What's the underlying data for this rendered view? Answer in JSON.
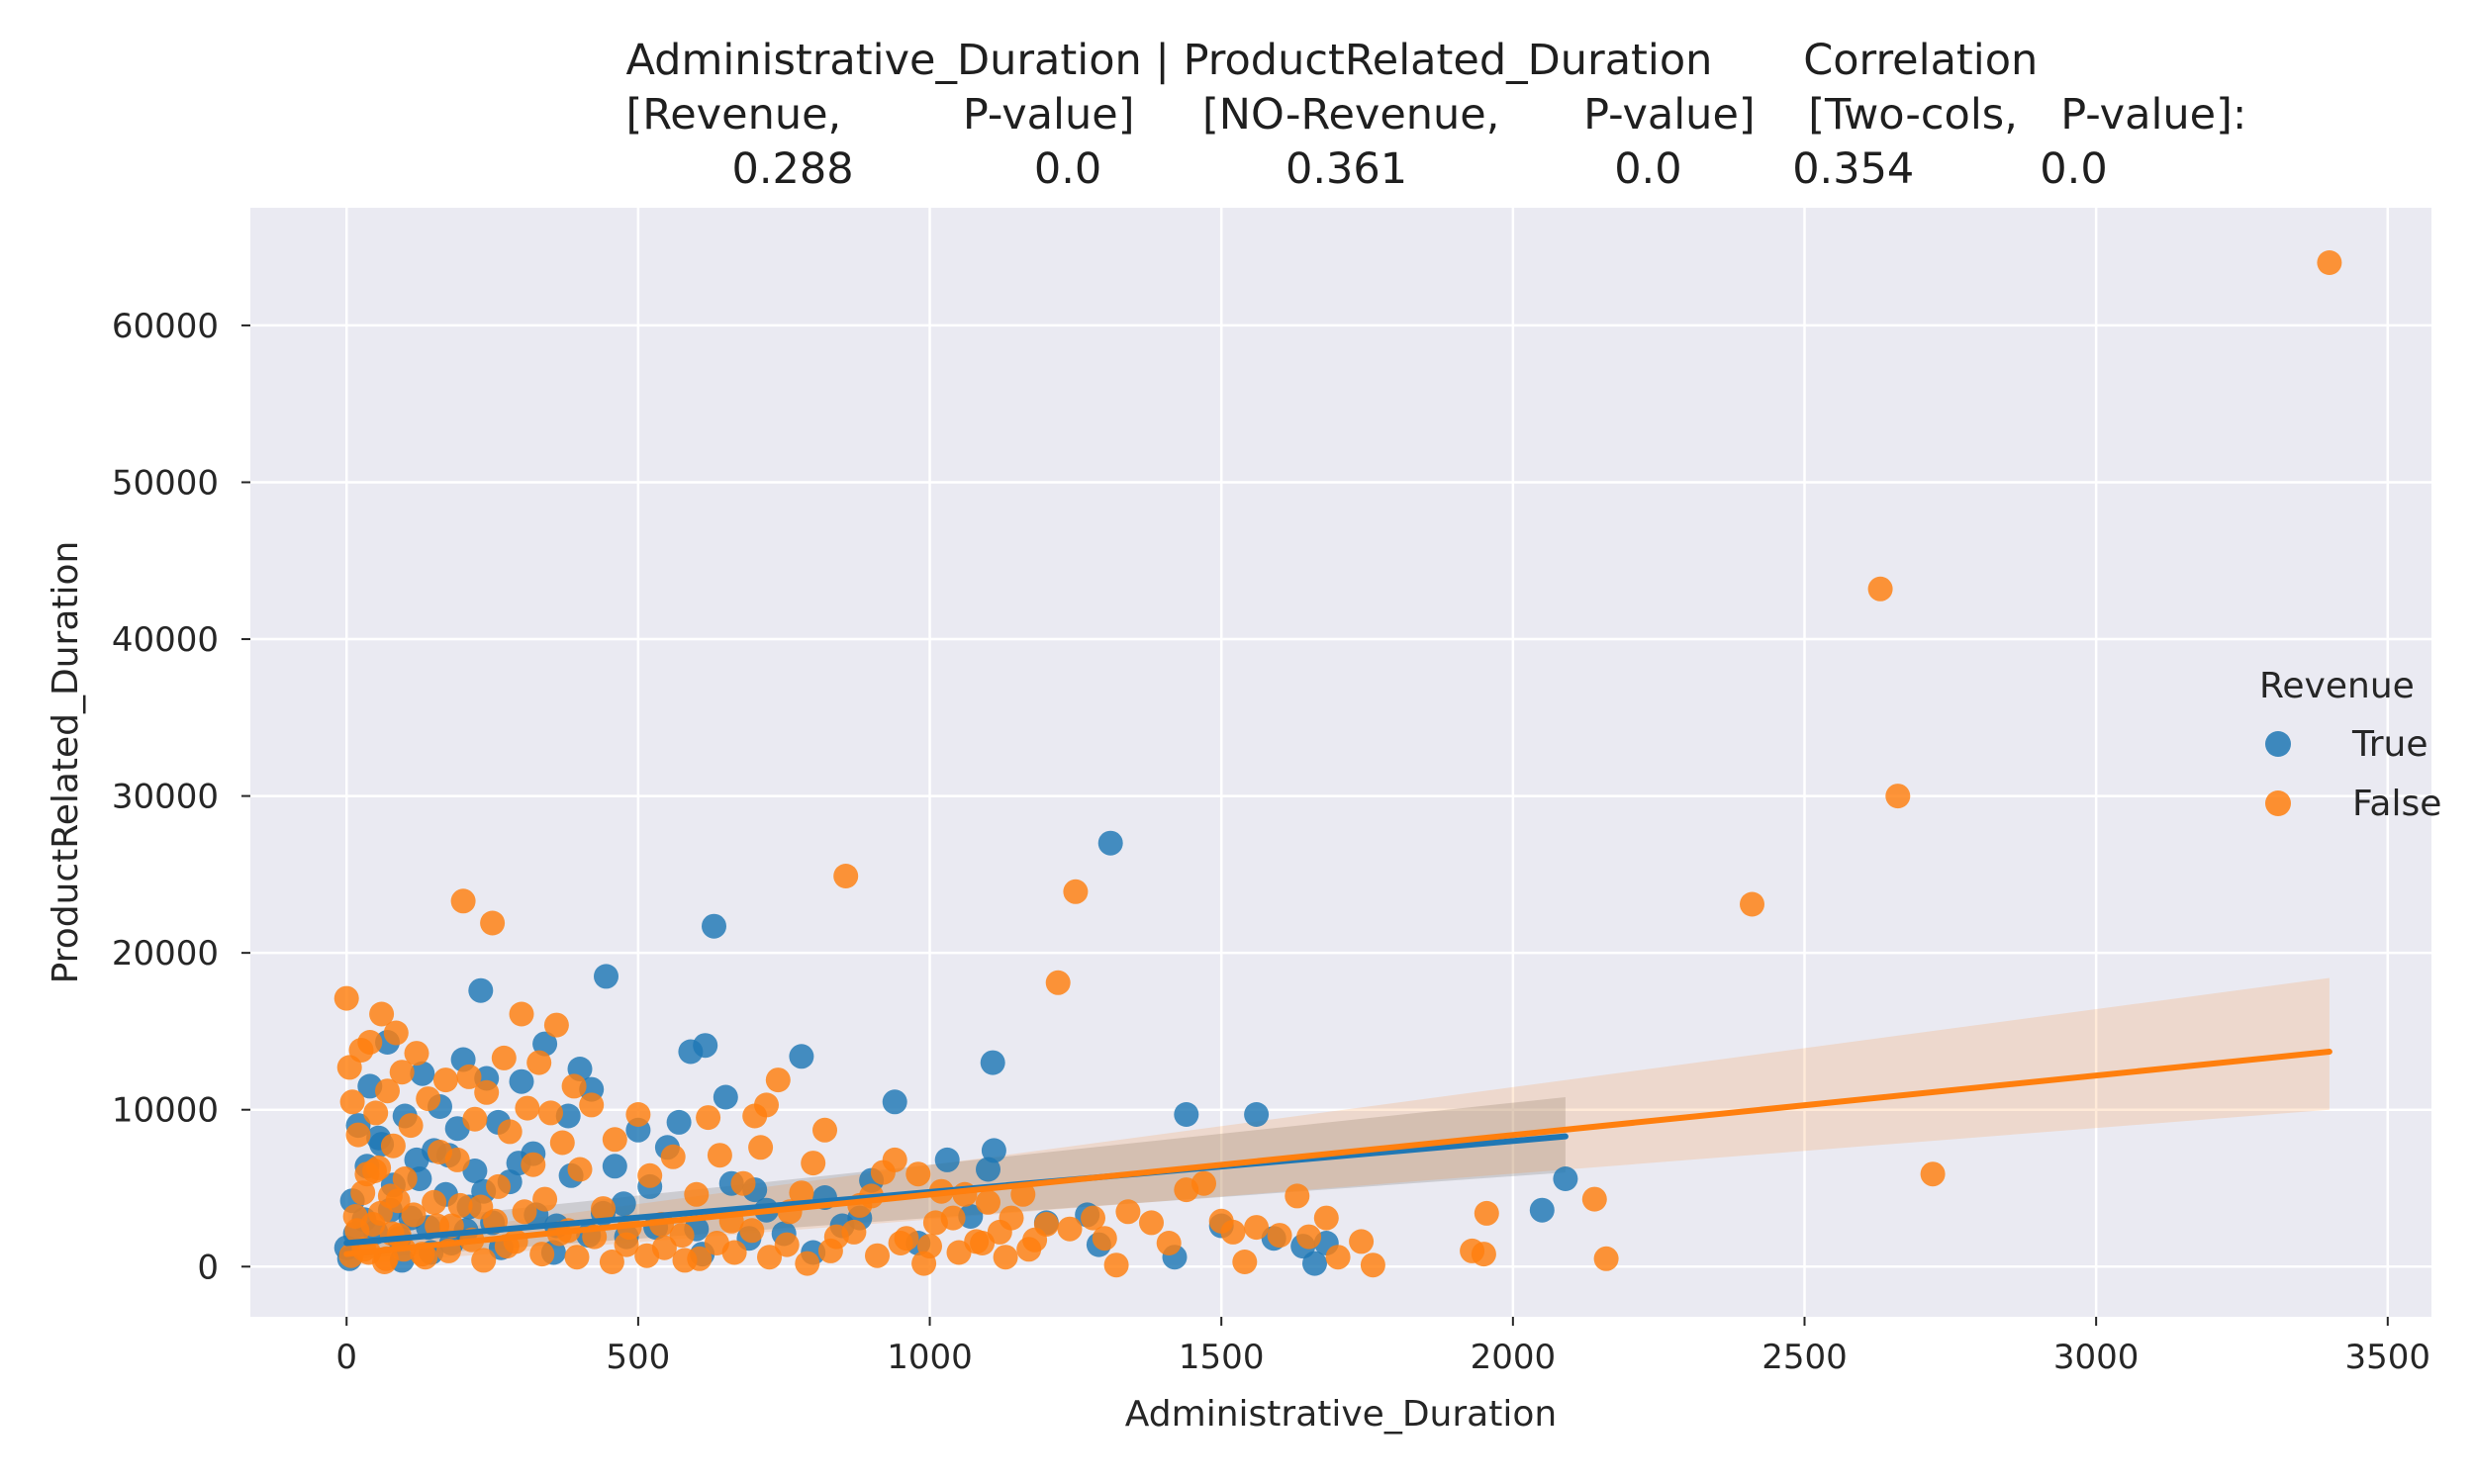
{
  "chart_data": {
    "type": "scatter",
    "title_lines": [
      "Administrative_Duration | ProductRelated_Duration    Correlation",
      "[Revenue,        P-value]    [NO-Revenue,     P-value]   [Two-cols,  P-value]:",
      "0.288             0.0          0.361            0.0        0.354          0.0"
    ],
    "title_cells": [
      {
        "row": 0,
        "text": "Administrative_Duration | ProductRelated_Duration",
        "anchor_x": 0.2529,
        "anchor": "start"
      },
      {
        "row": 0,
        "text": "Correlation",
        "anchor_x": 0.7286,
        "anchor": "start"
      },
      {
        "row": 1,
        "text": "[Revenue,",
        "anchor_x": 0.2529,
        "anchor": "start"
      },
      {
        "row": 1,
        "text": "P-value]",
        "anchor_x": 0.389,
        "anchor": "start"
      },
      {
        "row": 1,
        "text": "[NO-Revenue,",
        "anchor_x": 0.4858,
        "anchor": "start"
      },
      {
        "row": 1,
        "text": "P-value]",
        "anchor_x": 0.6398,
        "anchor": "start"
      },
      {
        "row": 1,
        "text": "[Two-cols,",
        "anchor_x": 0.7306,
        "anchor": "start"
      },
      {
        "row": 1,
        "text": "P-value]:",
        "anchor_x": 0.8326,
        "anchor": "start"
      },
      {
        "row": 2,
        "text": "0.288",
        "anchor_x": 0.2957,
        "anchor": "start"
      },
      {
        "row": 2,
        "text": "0.0",
        "anchor_x": 0.4178,
        "anchor": "start"
      },
      {
        "row": 2,
        "text": "0.361",
        "anchor_x": 0.5194,
        "anchor": "start"
      },
      {
        "row": 2,
        "text": "0.0",
        "anchor_x": 0.6522,
        "anchor": "start"
      },
      {
        "row": 2,
        "text": "0.354",
        "anchor_x": 0.7242,
        "anchor": "start"
      },
      {
        "row": 2,
        "text": "0.0",
        "anchor_x": 0.8242,
        "anchor": "start"
      }
    ],
    "xlabel": "Administrative_Duration",
    "ylabel": "ProductRelated_Duration",
    "xlim": [
      -165,
      3575
    ],
    "ylim": [
      -3200,
      67500
    ],
    "xticks": [
      0,
      500,
      1000,
      1500,
      2000,
      2500,
      3000,
      3500
    ],
    "yticks": [
      0,
      10000,
      20000,
      30000,
      40000,
      50000,
      60000
    ],
    "grid": true,
    "background": "#eaeaf2",
    "legend": {
      "title": "Revenue",
      "placement": "right",
      "entries": [
        "True",
        "False"
      ]
    },
    "series": [
      {
        "name": "True",
        "color": "#1f77b4",
        "points": [
          [
            0,
            1200
          ],
          [
            10,
            4200
          ],
          [
            20,
            9000
          ],
          [
            30,
            3000
          ],
          [
            40,
            11500
          ],
          [
            50,
            2200
          ],
          [
            60,
            7800
          ],
          [
            70,
            14300
          ],
          [
            80,
            5200
          ],
          [
            90,
            1800
          ],
          [
            100,
            9600
          ],
          [
            110,
            3100
          ],
          [
            120,
            6800
          ],
          [
            130,
            12300
          ],
          [
            140,
            2500
          ],
          [
            150,
            7400
          ],
          [
            160,
            10200
          ],
          [
            170,
            4600
          ],
          [
            180,
            1500
          ],
          [
            190,
            8800
          ],
          [
            200,
            13200
          ],
          [
            210,
            3800
          ],
          [
            220,
            6100
          ],
          [
            230,
            17600
          ],
          [
            240,
            12000
          ],
          [
            250,
            2800
          ],
          [
            260,
            9200
          ],
          [
            280,
            5400
          ],
          [
            300,
            11800
          ],
          [
            320,
            7200
          ],
          [
            340,
            14200
          ],
          [
            360,
            2600
          ],
          [
            380,
            9600
          ],
          [
            400,
            12600
          ],
          [
            420,
            11300
          ],
          [
            440,
            3400
          ],
          [
            445,
            18500
          ],
          [
            460,
            6400
          ],
          [
            480,
            1900
          ],
          [
            500,
            8700
          ],
          [
            520,
            5100
          ],
          [
            550,
            7600
          ],
          [
            570,
            9200
          ],
          [
            590,
            13700
          ],
          [
            600,
            2400
          ],
          [
            615,
            14100
          ],
          [
            630,
            21700
          ],
          [
            650,
            10800
          ],
          [
            660,
            5300
          ],
          [
            690,
            1800
          ],
          [
            720,
            3600
          ],
          [
            750,
            2100
          ],
          [
            780,
            13400
          ],
          [
            820,
            4400
          ],
          [
            850,
            2600
          ],
          [
            900,
            5500
          ],
          [
            940,
            10500
          ],
          [
            980,
            1500
          ],
          [
            1030,
            6800
          ],
          [
            1070,
            3200
          ],
          [
            1100,
            6200
          ],
          [
            1108,
            13000
          ],
          [
            1110,
            7400
          ],
          [
            1200,
            2800
          ],
          [
            1270,
            3300
          ],
          [
            1290,
            1400
          ],
          [
            1310,
            27000
          ],
          [
            1420,
            600
          ],
          [
            1440,
            9700
          ],
          [
            1500,
            2600
          ],
          [
            1560,
            9700
          ],
          [
            1590,
            1800
          ],
          [
            1640,
            1300
          ],
          [
            1660,
            200
          ],
          [
            1680,
            1500
          ],
          [
            2050,
            3600
          ],
          [
            2090,
            5600
          ],
          [
            5,
            500
          ],
          [
            15,
            2100
          ],
          [
            35,
            6400
          ],
          [
            55,
            8200
          ],
          [
            75,
            3600
          ],
          [
            95,
            400
          ],
          [
            125,
            5600
          ],
          [
            145,
            900
          ],
          [
            175,
            7100
          ],
          [
            205,
            2300
          ],
          [
            235,
            4800
          ],
          [
            265,
            1200
          ],
          [
            295,
            6600
          ],
          [
            325,
            3300
          ],
          [
            355,
            900
          ],
          [
            385,
            5800
          ],
          [
            415,
            2000
          ],
          [
            475,
            4000
          ],
          [
            530,
            2500
          ],
          [
            610,
            800
          ],
          [
            700,
            4900
          ],
          [
            800,
            900
          ],
          [
            880,
            3100
          ]
        ],
        "fit": {
          "x0": 0,
          "y0": 1500,
          "x1": 2090,
          "y1": 8300,
          "ci_low_end": 6000,
          "ci_high_end": 10800
        }
      },
      {
        "name": "False",
        "color": "#ff7f0e",
        "points": [
          [
            0,
            17100
          ],
          [
            5,
            12700
          ],
          [
            10,
            10500
          ],
          [
            15,
            3200
          ],
          [
            20,
            8400
          ],
          [
            25,
            13800
          ],
          [
            30,
            1100
          ],
          [
            35,
            5900
          ],
          [
            40,
            14300
          ],
          [
            45,
            2700
          ],
          [
            50,
            9800
          ],
          [
            55,
            6300
          ],
          [
            60,
            16100
          ],
          [
            65,
            300
          ],
          [
            70,
            11200
          ],
          [
            75,
            4500
          ],
          [
            80,
            7700
          ],
          [
            85,
            14900
          ],
          [
            90,
            2000
          ],
          [
            95,
            12400
          ],
          [
            100,
            5600
          ],
          [
            110,
            9000
          ],
          [
            120,
            13600
          ],
          [
            130,
            800
          ],
          [
            140,
            10700
          ],
          [
            150,
            4100
          ],
          [
            160,
            7300
          ],
          [
            170,
            11900
          ],
          [
            180,
            2600
          ],
          [
            190,
            6800
          ],
          [
            200,
            23300
          ],
          [
            210,
            12100
          ],
          [
            220,
            9400
          ],
          [
            230,
            3800
          ],
          [
            240,
            11100
          ],
          [
            250,
            21900
          ],
          [
            260,
            5100
          ],
          [
            270,
            13300
          ],
          [
            280,
            8600
          ],
          [
            290,
            1600
          ],
          [
            300,
            16100
          ],
          [
            310,
            10100
          ],
          [
            320,
            6500
          ],
          [
            330,
            13000
          ],
          [
            340,
            4300
          ],
          [
            350,
            9800
          ],
          [
            360,
            15400
          ],
          [
            370,
            7900
          ],
          [
            380,
            2300
          ],
          [
            390,
            11500
          ],
          [
            400,
            6200
          ],
          [
            420,
            10300
          ],
          [
            440,
            3700
          ],
          [
            460,
            8100
          ],
          [
            480,
            1400
          ],
          [
            500,
            9700
          ],
          [
            520,
            5800
          ],
          [
            540,
            2700
          ],
          [
            560,
            7000
          ],
          [
            580,
            400
          ],
          [
            600,
            4600
          ],
          [
            620,
            9500
          ],
          [
            640,
            7100
          ],
          [
            660,
            2900
          ],
          [
            680,
            5300
          ],
          [
            700,
            9600
          ],
          [
            710,
            7600
          ],
          [
            720,
            10300
          ],
          [
            740,
            11900
          ],
          [
            760,
            3500
          ],
          [
            780,
            4700
          ],
          [
            800,
            6600
          ],
          [
            820,
            8700
          ],
          [
            840,
            1900
          ],
          [
            856,
            24900
          ],
          [
            880,
            3900
          ],
          [
            900,
            4500
          ],
          [
            920,
            6000
          ],
          [
            940,
            6800
          ],
          [
            960,
            1800
          ],
          [
            980,
            5900
          ],
          [
            1000,
            1300
          ],
          [
            1020,
            4800
          ],
          [
            1040,
            3100
          ],
          [
            1060,
            4600
          ],
          [
            1080,
            1600
          ],
          [
            1100,
            4100
          ],
          [
            1120,
            2200
          ],
          [
            1140,
            3100
          ],
          [
            1160,
            4600
          ],
          [
            1180,
            1700
          ],
          [
            1200,
            2700
          ],
          [
            1220,
            18100
          ],
          [
            1240,
            2400
          ],
          [
            1250,
            23900
          ],
          [
            1280,
            3100
          ],
          [
            1300,
            1800
          ],
          [
            1320,
            100
          ],
          [
            1340,
            3500
          ],
          [
            1380,
            2800
          ],
          [
            1410,
            1500
          ],
          [
            1440,
            4900
          ],
          [
            1470,
            5300
          ],
          [
            1500,
            2900
          ],
          [
            1520,
            2200
          ],
          [
            1540,
            300
          ],
          [
            1560,
            2500
          ],
          [
            1600,
            2000
          ],
          [
            1630,
            4500
          ],
          [
            1650,
            1900
          ],
          [
            1680,
            3100
          ],
          [
            1700,
            600
          ],
          [
            1740,
            1600
          ],
          [
            1760,
            100
          ],
          [
            1930,
            1000
          ],
          [
            1950,
            800
          ],
          [
            1955,
            3400
          ],
          [
            2140,
            4300
          ],
          [
            2160,
            500
          ],
          [
            2410,
            23100
          ],
          [
            2630,
            43200
          ],
          [
            2660,
            30000
          ],
          [
            2720,
            5900
          ],
          [
            3400,
            64000
          ],
          [
            8,
            700
          ],
          [
            18,
            2300
          ],
          [
            28,
            4700
          ],
          [
            38,
            900
          ],
          [
            48,
            6100
          ],
          [
            58,
            3400
          ],
          [
            68,
            500
          ],
          [
            78,
            2100
          ],
          [
            88,
            4200
          ],
          [
            98,
            1100
          ],
          [
            115,
            3300
          ],
          [
            135,
            600
          ],
          [
            155,
            2600
          ],
          [
            175,
            1000
          ],
          [
            195,
            3900
          ],
          [
            215,
            1700
          ],
          [
            235,
            400
          ],
          [
            255,
            2900
          ],
          [
            275,
            1300
          ],
          [
            305,
            3500
          ],
          [
            335,
            800
          ],
          [
            365,
            2100
          ],
          [
            395,
            600
          ],
          [
            425,
            1900
          ],
          [
            455,
            300
          ],
          [
            485,
            2500
          ],
          [
            515,
            700
          ],
          [
            545,
            1200
          ],
          [
            575,
            2000
          ],
          [
            605,
            500
          ],
          [
            635,
            1500
          ],
          [
            665,
            900
          ],
          [
            695,
            2300
          ],
          [
            725,
            600
          ],
          [
            755,
            1400
          ],
          [
            790,
            200
          ],
          [
            830,
            1000
          ],
          [
            870,
            2200
          ],
          [
            910,
            700
          ],
          [
            950,
            1500
          ],
          [
            990,
            200
          ],
          [
            1010,
            2800
          ],
          [
            1050,
            900
          ],
          [
            1090,
            1500
          ],
          [
            1130,
            600
          ],
          [
            1170,
            1100
          ]
        ],
        "fit": {
          "x0": 0,
          "y0": 800,
          "x1": 3400,
          "y1": 13700,
          "ci_low_end": 10000,
          "ci_high_end": 18400
        }
      }
    ]
  }
}
